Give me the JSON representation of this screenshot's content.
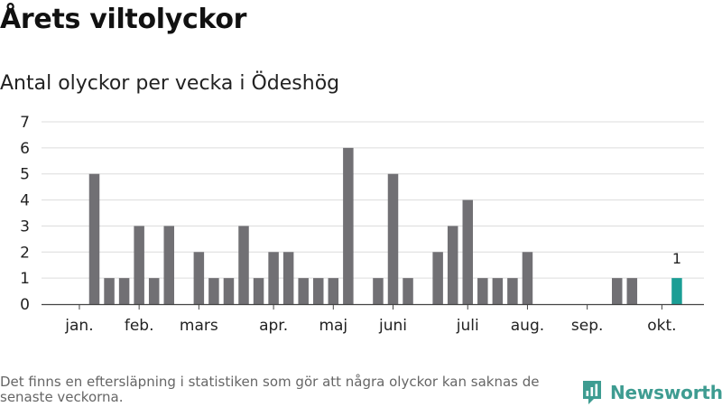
{
  "title": "Årets viltolyckor",
  "subtitle": "Antal olyckor per vecka i Ödeshög",
  "footnote": "Det finns en eftersläpning i statistiken som gör att några olyckor kan saknas de senaste veckorna.",
  "brand": {
    "name": "Newsworthy",
    "color": "#3e9c91"
  },
  "chart_data": {
    "type": "bar",
    "title": "Antal olyckor per vecka i Ödeshög",
    "xlabel": "",
    "ylabel": "",
    "ylim": [
      0,
      7
    ],
    "yticks": [
      0,
      1,
      2,
      3,
      4,
      5,
      6,
      7
    ],
    "grid": true,
    "x_unit": "week",
    "weeks": [
      1,
      2,
      3,
      4,
      5,
      6,
      7,
      8,
      9,
      10,
      11,
      12,
      13,
      14,
      15,
      16,
      17,
      18,
      19,
      20,
      21,
      22,
      23,
      24,
      25,
      26,
      27,
      28,
      29,
      30,
      31,
      32,
      33,
      34,
      35,
      36,
      37,
      38,
      39,
      40,
      41
    ],
    "values": [
      0,
      5,
      1,
      1,
      3,
      1,
      3,
      0,
      2,
      1,
      1,
      3,
      1,
      2,
      2,
      1,
      1,
      1,
      6,
      0,
      1,
      5,
      1,
      0,
      2,
      3,
      4,
      1,
      1,
      1,
      2,
      0,
      0,
      0,
      0,
      0,
      1,
      1,
      0,
      0,
      1
    ],
    "highlight": {
      "week": 41,
      "value": 1,
      "label": "1",
      "color": "#1a9e95"
    },
    "bar_color": "#717074",
    "month_labels": [
      {
        "label": "jan.",
        "week": 1
      },
      {
        "label": "feb.",
        "week": 5
      },
      {
        "label": "mars",
        "week": 9
      },
      {
        "label": "apr.",
        "week": 14
      },
      {
        "label": "maj",
        "week": 18
      },
      {
        "label": "juni",
        "week": 22
      },
      {
        "label": "juli",
        "week": 27
      },
      {
        "label": "aug.",
        "week": 31
      },
      {
        "label": "sep.",
        "week": 35
      },
      {
        "label": "okt.",
        "week": 40
      }
    ]
  }
}
